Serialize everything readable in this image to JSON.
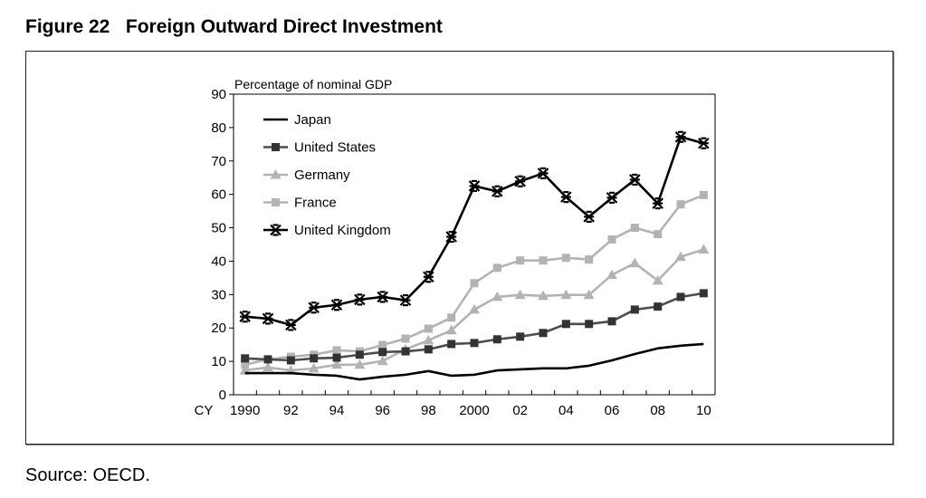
{
  "figure": {
    "title": "Figure 22   Foreign Outward Direct Investment",
    "source": "Source: OECD."
  },
  "chart_data": {
    "type": "line",
    "title": "Foreign Outward Direct Investment",
    "xlabel": "CY",
    "ylabel": "Percentage of nominal GDP",
    "ylim": [
      0,
      90
    ],
    "yticks": [
      0,
      10,
      20,
      30,
      40,
      50,
      60,
      70,
      80,
      90
    ],
    "x": [
      1990,
      1991,
      1992,
      1993,
      1994,
      1995,
      1996,
      1997,
      1998,
      1999,
      2000,
      2001,
      2002,
      2003,
      2004,
      2005,
      2006,
      2007,
      2008,
      2009,
      2010
    ],
    "xtick_labels": [
      {
        "year": 1990,
        "label": "1990"
      },
      {
        "year": 1992,
        "label": "92"
      },
      {
        "year": 1994,
        "label": "94"
      },
      {
        "year": 1996,
        "label": "96"
      },
      {
        "year": 1998,
        "label": "98"
      },
      {
        "year": 2000,
        "label": "2000"
      },
      {
        "year": 2002,
        "label": "02"
      },
      {
        "year": 2004,
        "label": "04"
      },
      {
        "year": 2006,
        "label": "06"
      },
      {
        "year": 2008,
        "label": "08"
      },
      {
        "year": 2010,
        "label": "10"
      }
    ],
    "grid": false,
    "legend_position": "top-left",
    "series": [
      {
        "name": "Japan",
        "marker": "none",
        "color": "#000000",
        "marker_color": "#000000",
        "values": [
          6.5,
          6.5,
          6.5,
          6.0,
          5.7,
          4.6,
          5.4,
          6.0,
          7.1,
          5.7,
          6.0,
          7.3,
          7.6,
          7.9,
          7.9,
          8.7,
          10.3,
          12.2,
          13.9,
          14.7,
          15.2
        ]
      },
      {
        "name": "United States",
        "marker": "square",
        "color": "#4d4d4d",
        "marker_color": "#333333",
        "values": [
          10.9,
          10.6,
          10.3,
          10.9,
          11.1,
          12.0,
          12.8,
          13.0,
          13.6,
          15.2,
          15.5,
          16.6,
          17.4,
          18.5,
          21.2,
          21.2,
          22.0,
          25.5,
          26.4,
          29.3,
          30.4
        ]
      },
      {
        "name": "Germany",
        "marker": "triangle",
        "color": "#b3b3b3",
        "marker_color": "#b3b3b3",
        "values": [
          7.3,
          8.2,
          7.3,
          7.9,
          9.0,
          9.0,
          10.1,
          13.6,
          16.3,
          19.3,
          25.5,
          29.3,
          29.9,
          29.6,
          29.9,
          29.9,
          35.9,
          39.4,
          34.2,
          41.3,
          43.5
        ]
      },
      {
        "name": "France",
        "marker": "square",
        "color": "#b3b3b3",
        "marker_color": "#b3b3b3",
        "values": [
          9.0,
          10.6,
          11.4,
          12.0,
          13.3,
          13.0,
          14.9,
          16.8,
          19.8,
          23.1,
          33.4,
          38.0,
          40.2,
          40.2,
          41.0,
          40.5,
          46.5,
          50.0,
          48.1,
          57.0,
          59.8
        ]
      },
      {
        "name": "United Kingdom",
        "marker": "asterisk",
        "color": "#000000",
        "marker_color": "#000000",
        "values": [
          23.4,
          22.8,
          20.9,
          26.1,
          26.9,
          28.5,
          29.3,
          28.3,
          35.3,
          47.3,
          62.5,
          60.9,
          63.9,
          66.3,
          59.2,
          53.3,
          59.0,
          64.4,
          57.3,
          77.2,
          75.3
        ]
      }
    ]
  }
}
